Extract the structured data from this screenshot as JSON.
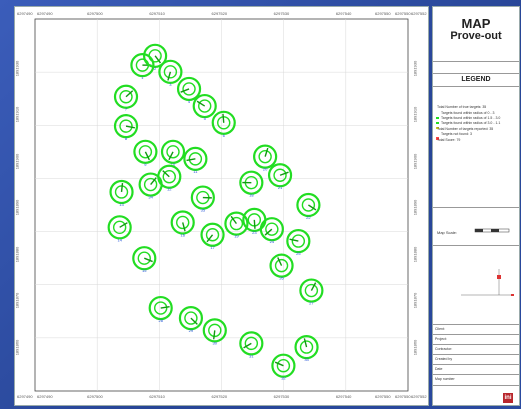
{
  "map": {
    "x_ticks_top": [
      "6297500",
      "6297510",
      "6297520",
      "6297530",
      "6297540"
    ],
    "x_ticks_bottom": [
      "6297500",
      "6297510",
      "6297520",
      "6297530",
      "6297540"
    ],
    "corner_labels": {
      "top_left_a": "6297490",
      "top_left_b": "6297490",
      "top_right_a": "6297550",
      "top_right_b": "6297550",
      "top_right_c": "6297552",
      "bottom_left_a": "6297490",
      "bottom_left_b": "6297490",
      "bottom_right_a": "6297550",
      "bottom_right_b": "6297550",
      "bottom_right_c": "6297552"
    },
    "y_ticks_left": [
      "1891930",
      "1891910",
      "1891900",
      "1891890",
      "1891880",
      "1891870",
      "1891860"
    ],
    "y_ticks_right": [
      "1891930",
      "1891910",
      "1891900",
      "1891890",
      "1891880",
      "1891870",
      "1891860"
    ],
    "targets": [
      {
        "x": 28.8,
        "y": 87.6,
        "label": "1"
      },
      {
        "x": 32.2,
        "y": 90.1,
        "label": "2"
      },
      {
        "x": 36.3,
        "y": 85.8,
        "label": "3"
      },
      {
        "x": 41.3,
        "y": 81.2,
        "label": "4"
      },
      {
        "x": 45.5,
        "y": 76.6,
        "label": "5"
      },
      {
        "x": 50.6,
        "y": 72.1,
        "label": "6"
      },
      {
        "x": 24.4,
        "y": 79.1,
        "label": "7"
      },
      {
        "x": 24.4,
        "y": 71.2,
        "label": "8"
      },
      {
        "x": 29.6,
        "y": 64.3,
        "label": "9"
      },
      {
        "x": 37.0,
        "y": 64.3,
        "label": "10"
      },
      {
        "x": 43.0,
        "y": 62.4,
        "label": "11"
      },
      {
        "x": 36.0,
        "y": 57.6,
        "label": "12"
      },
      {
        "x": 23.2,
        "y": 53.5,
        "label": "13"
      },
      {
        "x": 22.7,
        "y": 44.0,
        "label": "14"
      },
      {
        "x": 29.3,
        "y": 35.7,
        "label": "15"
      },
      {
        "x": 39.6,
        "y": 45.3,
        "label": "16"
      },
      {
        "x": 47.6,
        "y": 42.0,
        "label": "17"
      },
      {
        "x": 58.0,
        "y": 56.0,
        "label": "18"
      },
      {
        "x": 54.0,
        "y": 45.0,
        "label": "19"
      },
      {
        "x": 61.7,
        "y": 63.0,
        "label": "20"
      },
      {
        "x": 65.7,
        "y": 58.0,
        "label": "21"
      },
      {
        "x": 73.3,
        "y": 50.0,
        "label": "22"
      },
      {
        "x": 58.8,
        "y": 46.0,
        "label": "23"
      },
      {
        "x": 63.5,
        "y": 43.5,
        "label": "24"
      },
      {
        "x": 70.6,
        "y": 40.3,
        "label": "25"
      },
      {
        "x": 66.1,
        "y": 33.7,
        "label": "26"
      },
      {
        "x": 74.1,
        "y": 27.0,
        "label": "27"
      },
      {
        "x": 33.7,
        "y": 22.3,
        "label": "28"
      },
      {
        "x": 41.8,
        "y": 19.6,
        "label": "29"
      },
      {
        "x": 48.2,
        "y": 16.3,
        "label": "30"
      },
      {
        "x": 58.0,
        "y": 12.8,
        "label": "31"
      },
      {
        "x": 66.6,
        "y": 6.8,
        "label": "32"
      },
      {
        "x": 72.8,
        "y": 11.8,
        "label": "33"
      },
      {
        "x": 31.0,
        "y": 55.5,
        "label": "34"
      },
      {
        "x": 45.0,
        "y": 52.0,
        "label": "35"
      }
    ]
  },
  "legend_panel": {
    "title": "MAP",
    "subtitle": "Prove-out",
    "legend_heading": "LEGEND",
    "lines": [
      "Total Number of true targets: 35",
      "Targets found within radius of 0 - 3",
      "Targets found within radius of 1.5 - 3.0",
      "Targets found within radius of 3.0 - 1.1",
      "Total Number of targets reported: 35",
      "Targets not found: 3",
      "Total Score: 79"
    ],
    "scale_label": "Map Scale:",
    "title_block": [
      "Client:",
      "Project:",
      "Contractor:",
      "Created by",
      "Date",
      "Map number"
    ],
    "logo_text": "ini"
  },
  "colors": {
    "target_ring": "#22dd22",
    "target_label": "#1f4fd8",
    "page_bg": "#2f4fa8"
  }
}
